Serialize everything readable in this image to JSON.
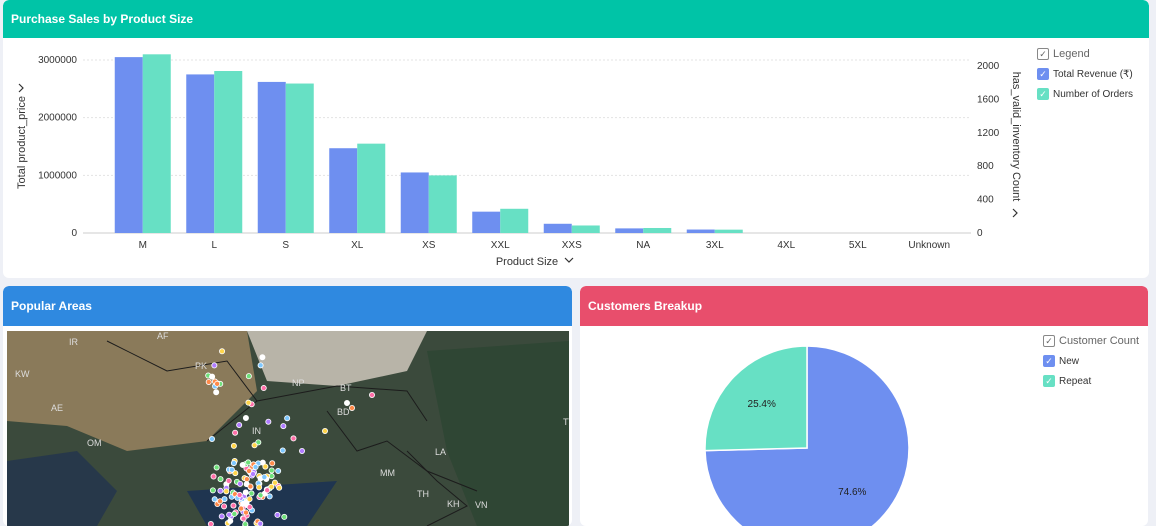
{
  "sales_panel": {
    "title": "Purchase Sales by Product Size",
    "legend_title": "Legend",
    "legend_items": [
      {
        "label": "Total Revenue (₹)",
        "color": "#6e8ff0"
      },
      {
        "label": "Number of Orders",
        "color": "#67e0c4"
      }
    ],
    "x_axis_label": "Product Size",
    "y_axis_left_label": "Total product_price",
    "y_axis_right_label": "has_valid_inventory Count"
  },
  "chart_data": [
    {
      "type": "bar",
      "title": "Purchase Sales by Product Size",
      "xlabel": "Product Size",
      "ylabel": "Total product_price",
      "y2label": "has_valid_inventory Count",
      "categories": [
        "M",
        "L",
        "S",
        "XL",
        "XS",
        "XXL",
        "XXS",
        "NA",
        "3XL",
        "4XL",
        "5XL",
        "Unknown"
      ],
      "ylim": [
        0,
        3000000
      ],
      "y_ticks": [
        "0",
        "1000000",
        "2000000",
        "3000000"
      ],
      "y2lim": [
        0,
        2000
      ],
      "y2_ticks": [
        "0",
        "400",
        "800",
        "1200",
        "1600",
        "2000"
      ],
      "series": [
        {
          "name": "Total Revenue (₹)",
          "axis": "left",
          "color": "#6e8ff0",
          "values": [
            3050000,
            2750000,
            2620000,
            1470000,
            1050000,
            370000,
            160000,
            80000,
            60000,
            0,
            0,
            0
          ]
        },
        {
          "name": "Number of Orders",
          "axis": "right",
          "color": "#67e0c4",
          "values": [
            2140,
            1940,
            1790,
            1070,
            690,
            290,
            90,
            60,
            40,
            0,
            0,
            0
          ]
        }
      ],
      "grid": true,
      "legend": "right"
    },
    {
      "type": "pie",
      "title": "Customers Breakup",
      "legend_title": "Customer Count",
      "slices": [
        {
          "name": "New",
          "value": 74.6,
          "label": "74.6%",
          "color": "#6e8ff0"
        },
        {
          "name": "Repeat",
          "value": 25.4,
          "label": "25.4%",
          "color": "#67e0c4"
        }
      ],
      "legend": "top-right"
    }
  ],
  "areas_panel": {
    "title": "Popular Areas",
    "map_labels": [
      "IR",
      "AF",
      "PK",
      "NP",
      "BT",
      "BD",
      "IN",
      "OM",
      "MM",
      "LA",
      "TH",
      "KH",
      "VN",
      "KW",
      "AE",
      "TV"
    ]
  },
  "customers_panel": {
    "title": "Customers Breakup",
    "legend_title": "Customer Count",
    "legend_items": [
      {
        "label": "New",
        "color": "#6e8ff0"
      },
      {
        "label": "Repeat",
        "color": "#67e0c4"
      }
    ]
  }
}
